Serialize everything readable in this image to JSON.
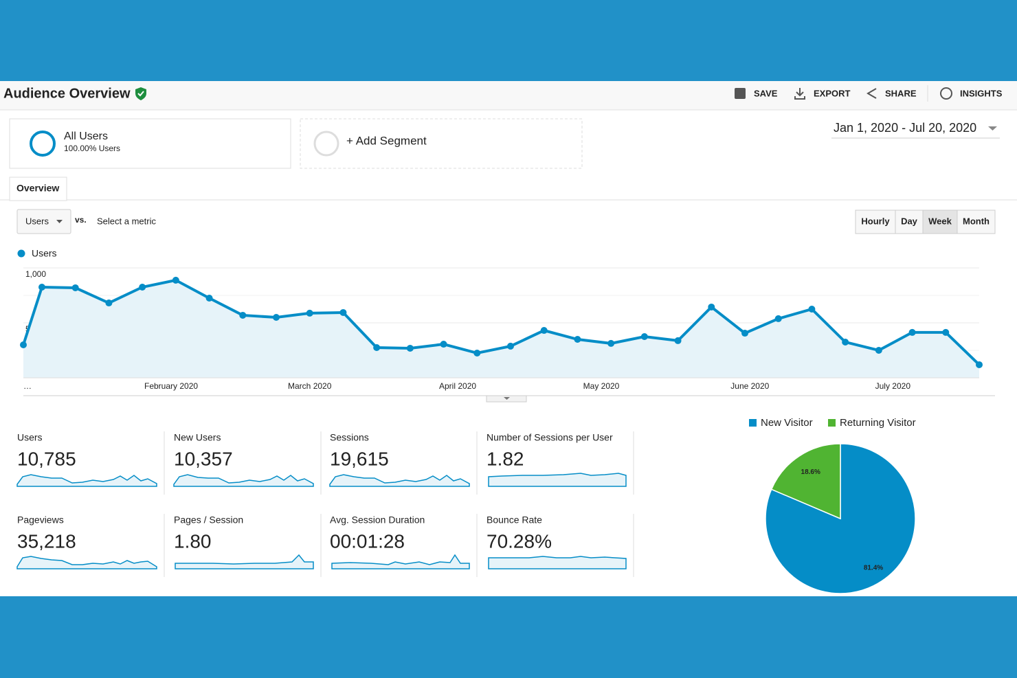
{
  "header": {
    "title": "Audience Overview",
    "actions": [
      "SAVE",
      "EXPORT",
      "SHARE",
      "INSIGHTS"
    ]
  },
  "segments": [
    {
      "name": "All Users",
      "detail": "100.00% Users"
    },
    {
      "name": "+ Add Segment"
    }
  ],
  "date_range": "Jan 1, 2020 - Jul 20, 2020",
  "tabs": [
    "Overview"
  ],
  "metric_selector": {
    "metric": "Users",
    "vs": "vs.",
    "link": "Select a metric"
  },
  "granularity": {
    "options": [
      "Hourly",
      "Day",
      "Week",
      "Month"
    ],
    "active": 2
  },
  "chart_data": [
    {
      "type": "line",
      "x_labels": [
        "…",
        "February 2020",
        "March 2020",
        "April 2020",
        "May 2020",
        "June 2020",
        "July 2020"
      ],
      "series": [
        {
          "name": "Users",
          "color": "#058dc7",
          "values": [
            300,
            825,
            819,
            681,
            825,
            888,
            725,
            569,
            550,
            588,
            594,
            275,
            269,
            306,
            225,
            288,
            431,
            350,
            313,
            375,
            338,
            644,
            406,
            538,
            625,
            325,
            250,
            413,
            413,
            119
          ]
        }
      ],
      "ylim": [
        0,
        1000
      ],
      "yticks": [
        500,
        {
          "value": 1000,
          "label": "1,000"
        }
      ],
      "grid": true
    },
    {
      "type": "pie",
      "categories": [
        "New Visitor",
        "Returning Visitor"
      ],
      "values": [
        81.4,
        18.6
      ],
      "value_labels": [
        "81.4%",
        "18.6%"
      ],
      "colors": [
        "#058dc7",
        "#50b432"
      ]
    }
  ],
  "metrics": [
    {
      "label": "Users",
      "value": "10,785"
    },
    {
      "label": "New Users",
      "value": "10,357"
    },
    {
      "label": "Sessions",
      "value": "19,615"
    },
    {
      "label": "Number of Sessions per User",
      "value": "1.82"
    },
    {
      "label": "Pageviews",
      "value": "35,218"
    },
    {
      "label": "Pages / Session",
      "value": "1.80"
    },
    {
      "label": "Avg. Session Duration",
      "value": "00:01:28"
    },
    {
      "label": "Bounce Rate",
      "value": "70.28%"
    }
  ]
}
